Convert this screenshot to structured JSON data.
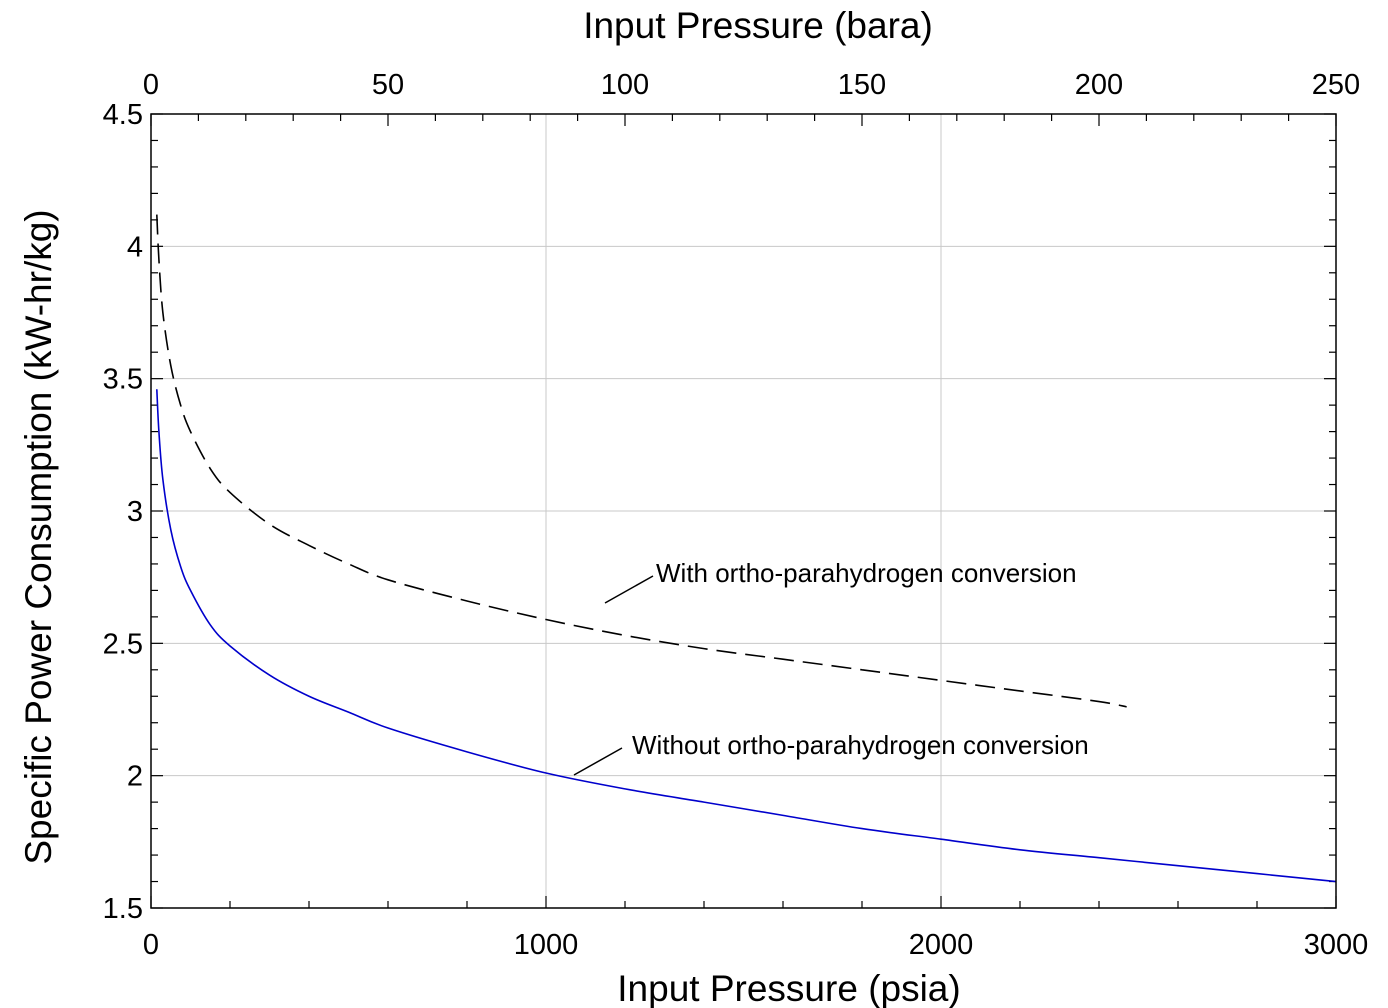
{
  "chart_data": {
    "type": "line",
    "title": "",
    "xlabel": "Input Pressure (psia)",
    "ylabel": "Specific Power Consumption (kW-hr/kg)",
    "x2label": "Input Pressure (bara)",
    "xlim": [
      0,
      3000
    ],
    "ylim": [
      1.5,
      4.5
    ],
    "x2lim": [
      0,
      250
    ],
    "xticks": [
      0,
      1000,
      2000,
      3000
    ],
    "xtick_labels": [
      "0",
      "1000",
      "2000",
      "3000"
    ],
    "yticks": [
      1.5,
      2,
      2.5,
      3,
      3.5,
      4,
      4.5
    ],
    "ytick_labels": [
      "1.5",
      "2",
      "2.5",
      "3",
      "3.5",
      "4",
      "4.5"
    ],
    "x2ticks": [
      0,
      50,
      100,
      150,
      200,
      250
    ],
    "x2tick_labels": [
      "0",
      "50",
      "100",
      "150",
      "200",
      "250"
    ],
    "grid": true,
    "series": [
      {
        "name": "With ortho-parahydrogen conversion",
        "style": "dashed",
        "color": "#000000",
        "x": [
          14.7,
          20,
          30,
          50,
          75,
          100,
          150,
          200,
          300,
          400,
          500,
          600,
          800,
          1000,
          1200,
          1400,
          1600,
          1800,
          2000,
          2200,
          2400,
          2470
        ],
        "y": [
          4.12,
          3.95,
          3.75,
          3.55,
          3.4,
          3.3,
          3.16,
          3.07,
          2.95,
          2.87,
          2.8,
          2.74,
          2.66,
          2.59,
          2.53,
          2.48,
          2.44,
          2.4,
          2.36,
          2.32,
          2.28,
          2.26
        ]
      },
      {
        "name": "Without ortho-parahydrogen conversion",
        "style": "solid",
        "color": "#0000cc",
        "x": [
          14.7,
          20,
          30,
          50,
          75,
          100,
          150,
          200,
          300,
          400,
          500,
          600,
          800,
          1000,
          1200,
          1400,
          1600,
          1800,
          2000,
          2200,
          2400,
          2600,
          2800,
          3000
        ],
        "y": [
          3.46,
          3.3,
          3.12,
          2.93,
          2.79,
          2.7,
          2.57,
          2.49,
          2.38,
          2.3,
          2.24,
          2.18,
          2.09,
          2.01,
          1.95,
          1.9,
          1.85,
          1.8,
          1.76,
          1.72,
          1.69,
          1.66,
          1.63,
          1.6
        ]
      }
    ],
    "annotations": [
      {
        "text": "With ortho-parahydrogen conversion",
        "series": 0
      },
      {
        "text": "Without ortho-parahydrogen conversion",
        "series": 1
      }
    ]
  }
}
